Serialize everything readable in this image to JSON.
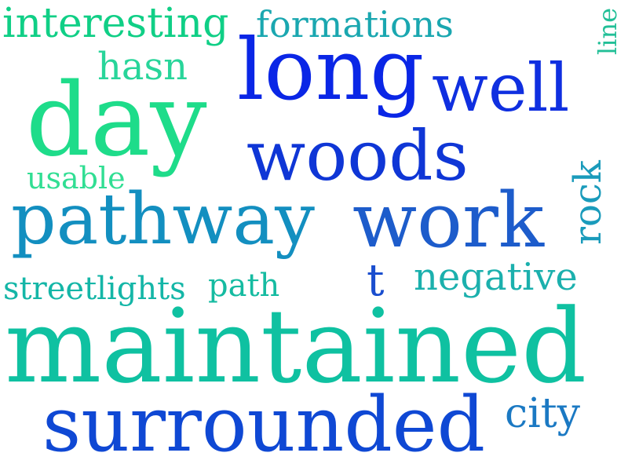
{
  "words": [
    {
      "text": "interesting",
      "color": "#10cf86"
    },
    {
      "text": "formations",
      "color": "#1aa7b0"
    },
    {
      "text": "line",
      "color": "#22bf97"
    },
    {
      "text": "hasn",
      "color": "#28d59a"
    },
    {
      "text": "long",
      "color": "#0a26e6"
    },
    {
      "text": "well",
      "color": "#0f2fe0"
    },
    {
      "text": "day",
      "color": "#1edc8a"
    },
    {
      "text": "woods",
      "color": "#0f36d6"
    },
    {
      "text": "usable",
      "color": "#31de93"
    },
    {
      "text": "rock",
      "color": "#1a9bbb"
    },
    {
      "text": "pathway",
      "color": "#138fc0"
    },
    {
      "text": "work",
      "color": "#1d5ccb"
    },
    {
      "text": "streetlights",
      "color": "#14b6a7"
    },
    {
      "text": "path",
      "color": "#15bba1"
    },
    {
      "text": "t",
      "color": "#1a4ecf"
    },
    {
      "text": "negative",
      "color": "#1bb0ad"
    },
    {
      "text": "maintained",
      "color": "#0fc1a1"
    },
    {
      "text": "surrounded",
      "color": "#0f48d4"
    },
    {
      "text": "city",
      "color": "#1b79c3"
    }
  ]
}
